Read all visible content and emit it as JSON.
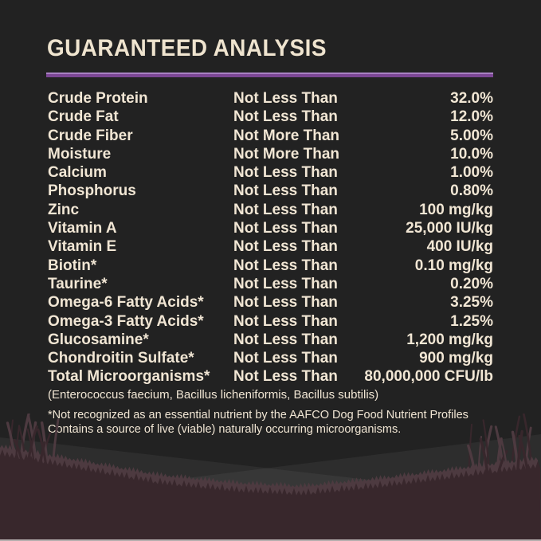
{
  "page": {
    "title": "GUARANTEED ANALYSIS",
    "colors": {
      "background_top": "#392A2F",
      "background_bottom": "#5E4950",
      "accent_rule": "#7C4795",
      "accent_rule_highlight": "#A981C3",
      "title_text": "#EFE4CF",
      "body_text": "#F1E6D4",
      "silhouette_dark": "#38272C",
      "silhouette_mid": "#4D3A40"
    }
  },
  "table": {
    "rows": [
      {
        "nutrient": "Crude Protein",
        "qualifier": "Not Less Than",
        "value": "32.0%"
      },
      {
        "nutrient": "Crude Fat",
        "qualifier": "Not Less Than",
        "value": "12.0%"
      },
      {
        "nutrient": "Crude Fiber",
        "qualifier": "Not More Than",
        "value": "5.00%"
      },
      {
        "nutrient": "Moisture",
        "qualifier": "Not More Than",
        "value": "10.0%"
      },
      {
        "nutrient": "Calcium",
        "qualifier": "Not Less Than",
        "value": "1.00%"
      },
      {
        "nutrient": "Phosphorus",
        "qualifier": "Not Less Than",
        "value": "0.80%"
      },
      {
        "nutrient": "Zinc",
        "qualifier": "Not Less Than",
        "value": "100 mg/kg"
      },
      {
        "nutrient": "Vitamin A",
        "qualifier": "Not Less Than",
        "value": "25,000 IU/kg"
      },
      {
        "nutrient": "Vitamin E",
        "qualifier": "Not Less Than",
        "value": "400 IU/kg"
      },
      {
        "nutrient": "Biotin*",
        "qualifier": "Not Less Than",
        "value": "0.10 mg/kg"
      },
      {
        "nutrient": "Taurine*",
        "qualifier": "Not Less Than",
        "value": "0.20%"
      },
      {
        "nutrient": "Omega-6 Fatty Acids*",
        "qualifier": "Not Less Than",
        "value": "3.25%"
      },
      {
        "nutrient": "Omega-3 Fatty Acids*",
        "qualifier": "Not Less Than",
        "value": "1.25%"
      },
      {
        "nutrient": "Glucosamine*",
        "qualifier": "Not Less Than",
        "value": "1,200 mg/kg"
      },
      {
        "nutrient": "Chondroitin Sulfate*",
        "qualifier": "Not Less Than",
        "value": "900 mg/kg"
      },
      {
        "nutrient": "Total Microorganisms*",
        "qualifier": "Not Less Than",
        "value": "80,000,000 CFU/lb"
      }
    ]
  },
  "footnotes": {
    "microorganism_species": "(Enterococcus faecium, Bacillus licheniformis, Bacillus subtilis)",
    "asterisk_note": "*Not recognized as an essential nutrient by the AAFCO Dog Food Nutrient Profiles",
    "live_note": "Contains a source of live (viable) naturally occurring microorganisms."
  }
}
